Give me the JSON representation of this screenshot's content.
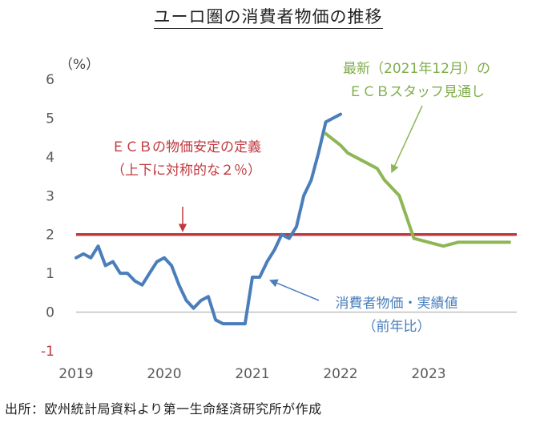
{
  "title": "ユーロ圏の消費者物価の推移",
  "unit_label": "（%）",
  "source": "出所：欧州統計局資料より第一生命経済研究所が作成",
  "annotations": {
    "forecast_line1": "最新（2021年12月）の",
    "forecast_line2": "ＥＣＢスタッフ見通し",
    "target_line1": "ＥＣＢの物価安定の定義",
    "target_line2": "（上下に対称的な２％）",
    "actual_line1": "消費者物価・実績値",
    "actual_line2": "（前年比）"
  },
  "colors": {
    "actual": "#4A7EBB",
    "forecast": "#8DB654",
    "target": "#C0393F",
    "axis_text": "#595959",
    "negative_tick": "#C0393F",
    "zero_line": "#BFBFBF"
  },
  "chart_data": {
    "type": "line",
    "title": "ユーロ圏の消費者物価の推移",
    "ylabel": "（%）",
    "xlabel": "",
    "ylim": [
      -1,
      6
    ],
    "yticks": [
      -1,
      0,
      1,
      2,
      3,
      4,
      5,
      6
    ],
    "xlim": [
      2019.0,
      2024.0
    ],
    "xticks": [
      2019,
      2020,
      2021,
      2022,
      2023
    ],
    "grid": false,
    "target": {
      "name": "ECBの物価安定の定義",
      "value": 2.0
    },
    "series": [
      {
        "name": "消費者物価・実績値（前年比）",
        "x": [
          2019.0,
          2019.083,
          2019.167,
          2019.25,
          2019.333,
          2019.417,
          2019.5,
          2019.583,
          2019.667,
          2019.75,
          2019.833,
          2019.917,
          2020.0,
          2020.083,
          2020.167,
          2020.25,
          2020.333,
          2020.417,
          2020.5,
          2020.583,
          2020.667,
          2020.75,
          2020.833,
          2020.917,
          2021.0,
          2021.083,
          2021.167,
          2021.25,
          2021.333,
          2021.417,
          2021.5,
          2021.583,
          2021.667,
          2021.75,
          2021.833,
          2021.917,
          2022.0
        ],
        "values": [
          1.4,
          1.5,
          1.4,
          1.7,
          1.2,
          1.3,
          1.0,
          1.0,
          0.8,
          0.7,
          1.0,
          1.3,
          1.4,
          1.2,
          0.7,
          0.3,
          0.1,
          0.3,
          0.4,
          -0.2,
          -0.3,
          -0.3,
          -0.3,
          -0.3,
          0.9,
          0.9,
          1.3,
          1.6,
          2.0,
          1.9,
          2.2,
          3.0,
          3.4,
          4.1,
          4.9,
          5.0,
          5.1
        ]
      },
      {
        "name": "最新（2021年12月）のECBスタッフ見通し",
        "x": [
          2021.833,
          2022.0,
          2022.083,
          2022.25,
          2022.417,
          2022.5,
          2022.667,
          2022.833,
          2023.0,
          2023.167,
          2023.333,
          2023.5,
          2023.667,
          2023.833,
          2023.917
        ],
        "values": [
          4.6,
          4.3,
          4.1,
          3.9,
          3.7,
          3.4,
          3.0,
          1.9,
          1.8,
          1.7,
          1.8,
          1.8,
          1.8,
          1.8,
          1.8
        ]
      }
    ]
  }
}
